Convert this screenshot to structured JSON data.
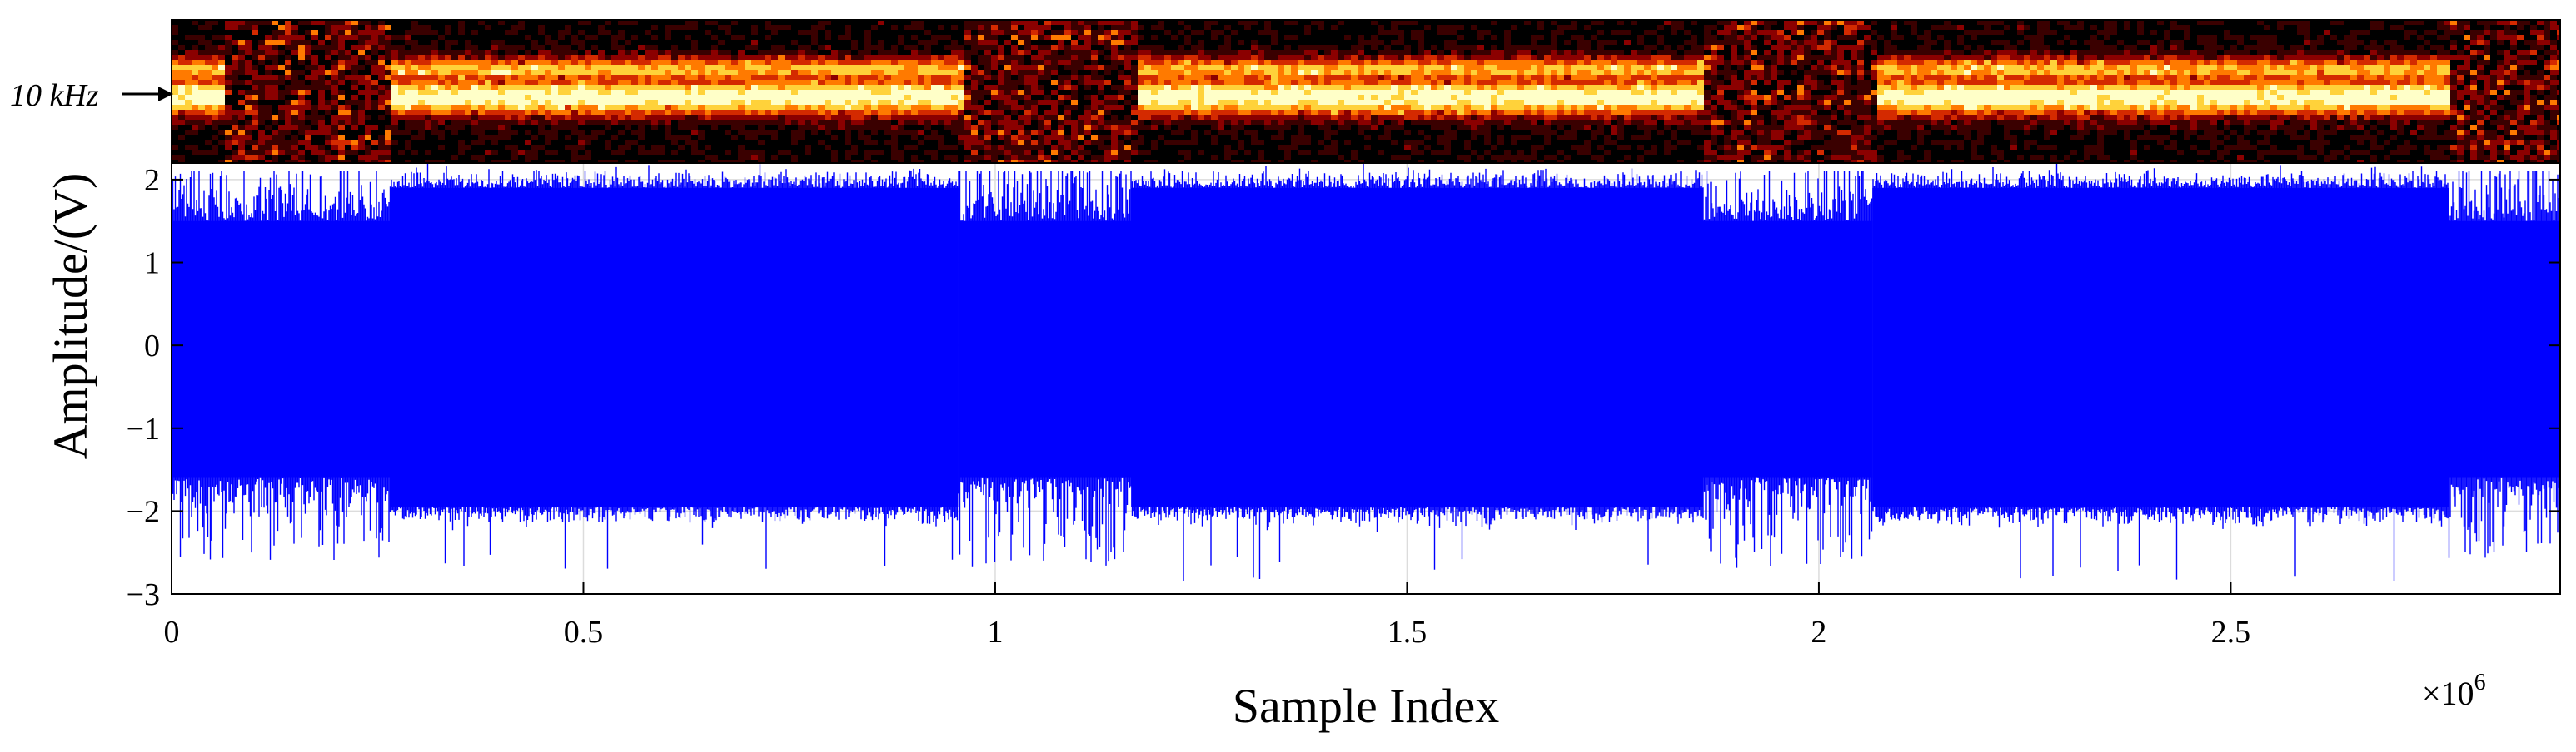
{
  "chart_data": [
    {
      "type": "heatmap",
      "annotation": "10 kHz",
      "colormap": [
        "#000000",
        "#3a0000",
        "#8b0000",
        "#d42a00",
        "#ff7a00",
        "#ffd23a",
        "#ffffc8"
      ],
      "active_segments": [
        [
          0.0,
          0.06
        ],
        [
          0.265,
          0.955
        ],
        [
          1.165,
          1.86
        ],
        [
          2.065,
          2.765
        ]
      ],
      "x_range": [
        0,
        2.9
      ]
    },
    {
      "type": "line",
      "xlabel": "Sample Index",
      "ylabel": "Amplitude/(V)",
      "x_exponent_label": "×10",
      "x_exponent_power": "6",
      "xlim": [
        0,
        2.9
      ],
      "ylim": [
        -3,
        2.2
      ],
      "x_ticks": [
        "0",
        "0.5",
        "1",
        "1.5",
        "2",
        "2.5"
      ],
      "x_tick_values": [
        0,
        0.5,
        1,
        1.5,
        2,
        2.5
      ],
      "y_ticks": [
        "2",
        "1",
        "0",
        "−1",
        "−2",
        "−3"
      ],
      "y_tick_values": [
        2,
        1,
        0,
        -1,
        -2,
        -3
      ],
      "grid": true,
      "series": [
        {
          "color": "#0000ff",
          "segments": [
            {
              "x_start": 0.0,
              "x_end": 0.265,
              "level": "low",
              "envelope": [
                -1.6,
                1.5
              ],
              "peaks": [
                -2.4,
                2.1
              ]
            },
            {
              "x_start": 0.265,
              "x_end": 0.955,
              "level": "high",
              "envelope": [
                -1.95,
                1.9
              ],
              "peaks": [
                -2.7,
                2.2
              ]
            },
            {
              "x_start": 0.955,
              "x_end": 1.165,
              "level": "low",
              "envelope": [
                -1.6,
                1.5
              ],
              "peaks": [
                -2.5,
                2.1
              ]
            },
            {
              "x_start": 1.165,
              "x_end": 1.86,
              "level": "high",
              "envelope": [
                -1.95,
                1.9
              ],
              "peaks": [
                -2.85,
                2.2
              ]
            },
            {
              "x_start": 1.86,
              "x_end": 2.065,
              "level": "low",
              "envelope": [
                -1.6,
                1.5
              ],
              "peaks": [
                -2.5,
                2.1
              ]
            },
            {
              "x_start": 2.065,
              "x_end": 2.765,
              "level": "high",
              "envelope": [
                -1.95,
                1.9
              ],
              "peaks": [
                -2.9,
                2.2
              ]
            },
            {
              "x_start": 2.765,
              "x_end": 2.9,
              "level": "low",
              "envelope": [
                -1.6,
                1.5
              ],
              "peaks": [
                -2.4,
                2.1
              ]
            }
          ]
        }
      ]
    }
  ]
}
